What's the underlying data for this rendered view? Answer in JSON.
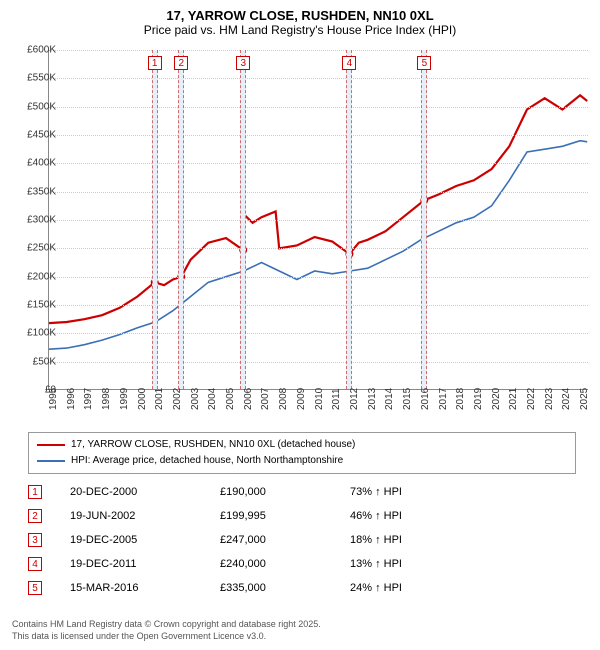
{
  "title_line1": "17, YARROW CLOSE, RUSHDEN, NN10 0XL",
  "title_line2": "Price paid vs. HM Land Registry's House Price Index (HPI)",
  "chart": {
    "type": "line",
    "x_start_year": 1995,
    "x_end_year": 2025.5,
    "ylim": [
      0,
      600000
    ],
    "ytick_step": 50000,
    "yticks": [
      "£0",
      "£50K",
      "£100K",
      "£150K",
      "£200K",
      "£250K",
      "£300K",
      "£350K",
      "£400K",
      "£450K",
      "£500K",
      "£550K",
      "£600K"
    ],
    "xticks": [
      1995,
      1996,
      1997,
      1998,
      1999,
      2000,
      2001,
      2002,
      2003,
      2004,
      2005,
      2006,
      2007,
      2008,
      2009,
      2010,
      2011,
      2012,
      2013,
      2014,
      2015,
      2016,
      2017,
      2018,
      2019,
      2020,
      2021,
      2022,
      2023,
      2024,
      2025
    ],
    "background_color": "#ffffff",
    "grid_color": "#cccccc",
    "series": [
      {
        "name": "price_paid",
        "color": "#cc0000",
        "width": 2.2,
        "label": "17, YARROW CLOSE, RUSHDEN, NN10 0XL (detached house)",
        "x": [
          1995,
          1996,
          1997,
          1998,
          1999,
          2000,
          2000.97,
          2001.5,
          2002,
          2002.47,
          2003,
          2004,
          2005,
          2005.97,
          2006,
          2006.5,
          2007,
          2007.8,
          2008,
          2009,
          2010,
          2011,
          2011.97,
          2012.5,
          2013,
          2014,
          2015,
          2016,
          2016.2,
          2017,
          2018,
          2019,
          2020,
          2021,
          2022,
          2023,
          2024,
          2025,
          2025.4
        ],
        "y": [
          118000,
          120000,
          125000,
          132000,
          145000,
          165000,
          190000,
          185000,
          195000,
          199995,
          230000,
          260000,
          268000,
          247000,
          310000,
          295000,
          305000,
          315000,
          250000,
          255000,
          270000,
          262000,
          240000,
          260000,
          265000,
          280000,
          305000,
          330000,
          335000,
          345000,
          360000,
          370000,
          390000,
          430000,
          495000,
          515000,
          495000,
          520000,
          510000
        ]
      },
      {
        "name": "hpi",
        "color": "#3b6fb6",
        "width": 1.6,
        "label": "HPI: Average price, detached house, North Northamptonshire",
        "x": [
          1995,
          1996,
          1997,
          1998,
          1999,
          2000,
          2001,
          2002,
          2003,
          2004,
          2005,
          2006,
          2007,
          2008,
          2009,
          2010,
          2011,
          2012,
          2013,
          2014,
          2015,
          2016,
          2017,
          2018,
          2019,
          2020,
          2021,
          2022,
          2023,
          2024,
          2025,
          2025.4
        ],
        "y": [
          72000,
          74000,
          80000,
          88000,
          98000,
          110000,
          120000,
          140000,
          165000,
          190000,
          200000,
          210000,
          225000,
          210000,
          195000,
          210000,
          205000,
          210000,
          215000,
          230000,
          245000,
          265000,
          280000,
          295000,
          305000,
          325000,
          370000,
          420000,
          425000,
          430000,
          440000,
          438000
        ]
      }
    ],
    "sale_markers": [
      {
        "n": "1",
        "year": 2000.97,
        "price": 190000
      },
      {
        "n": "2",
        "year": 2002.47,
        "price": 199995
      },
      {
        "n": "3",
        "year": 2005.97,
        "price": 247000
      },
      {
        "n": "4",
        "year": 2011.97,
        "price": 240000
      },
      {
        "n": "5",
        "year": 2016.2,
        "price": 335000
      }
    ]
  },
  "legend": [
    {
      "color": "#cc0000",
      "label": "17, YARROW CLOSE, RUSHDEN, NN10 0XL (detached house)"
    },
    {
      "color": "#3b6fb6",
      "label": "HPI: Average price, detached house, North Northamptonshire"
    }
  ],
  "sales": [
    {
      "n": "1",
      "date": "20-DEC-2000",
      "price": "£190,000",
      "diff": "73% ↑ HPI"
    },
    {
      "n": "2",
      "date": "19-JUN-2002",
      "price": "£199,995",
      "diff": "46% ↑ HPI"
    },
    {
      "n": "3",
      "date": "19-DEC-2005",
      "price": "£247,000",
      "diff": "18% ↑ HPI"
    },
    {
      "n": "4",
      "date": "19-DEC-2011",
      "price": "£240,000",
      "diff": "13% ↑ HPI"
    },
    {
      "n": "5",
      "date": "15-MAR-2016",
      "price": "£335,000",
      "diff": "24% ↑ HPI"
    }
  ],
  "footer_line1": "Contains HM Land Registry data © Crown copyright and database right 2025.",
  "footer_line2": "This data is licensed under the Open Government Licence v3.0."
}
